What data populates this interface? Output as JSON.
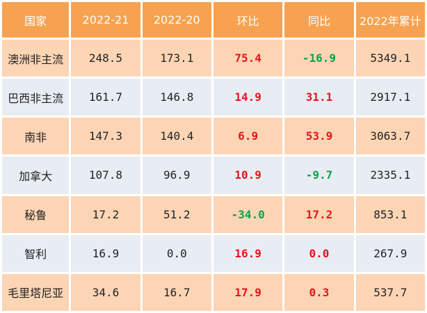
{
  "headers": [
    "国家",
    "2022-21",
    "2022-20",
    "环比",
    "同比",
    "2022年累计"
  ],
  "rows": [
    {
      "country": "澳洲非主流",
      "v2022_21": "248.5",
      "v2022_20": "173.1",
      "mom": "75.4",
      "yoy": "-16.9",
      "ytd": "5349.1"
    },
    {
      "country": "巴西非主流",
      "v2022_21": "161.7",
      "v2022_20": "146.8",
      "mom": "14.9",
      "yoy": "31.1",
      "ytd": "2917.1"
    },
    {
      "country": "南非",
      "v2022_21": "147.3",
      "v2022_20": "140.4",
      "mom": "6.9",
      "yoy": "53.9",
      "ytd": "3063.7"
    },
    {
      "country": "加拿大",
      "v2022_21": "107.8",
      "v2022_20": "96.9",
      "mom": "10.9",
      "yoy": "-9.7",
      "ytd": "2335.1"
    },
    {
      "country": "秘鲁",
      "v2022_21": "17.2",
      "v2022_20": "51.2",
      "mom": "-34.0",
      "yoy": "17.2",
      "ytd": "853.1"
    },
    {
      "country": "智利",
      "v2022_21": "16.9",
      "v2022_20": "0.0",
      "mom": "16.9",
      "yoy": "0.0",
      "ytd": "267.9"
    },
    {
      "country": "毛里塔尼亚",
      "v2022_21": "34.6",
      "v2022_20": "16.7",
      "mom": "17.9",
      "yoy": "0.3",
      "ytd": "537.7"
    }
  ],
  "colors": {
    "header_bg": "#f7a250",
    "row_odd_bg": "#fcd5b5",
    "row_even_bg": "#e8edf4",
    "positive": "#e8141c",
    "negative": "#12a04a"
  }
}
